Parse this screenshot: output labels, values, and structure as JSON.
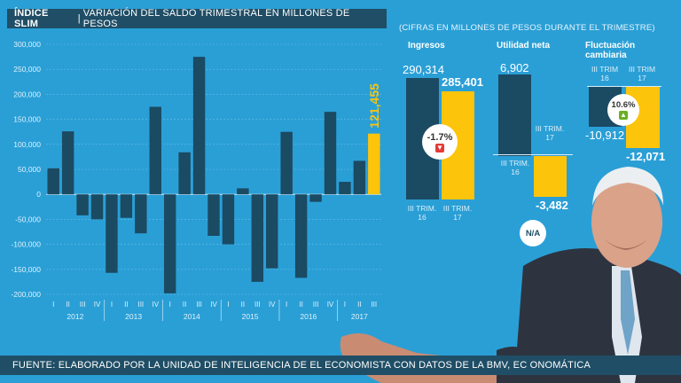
{
  "header": {
    "brand": "ÍNDICE SLIM",
    "title": "VARIACIÓN DEL SALDO TRIMESTRAL EN MILLONES DE PESOS"
  },
  "colors": {
    "background": "#2a9fd6",
    "dark_bar": "#1b4a63",
    "highlight_bar": "#fdc40c",
    "title_bar": "#1f4e66"
  },
  "chart_data": [
    {
      "type": "bar",
      "title": "VARIACIÓN DEL SALDO TRIMESTRAL EN MILLONES DE PESOS",
      "ylim": [
        -200000,
        300000
      ],
      "yticks": [
        "300,000",
        "250,000",
        "200,000",
        "150,000",
        "100,000",
        "50,000",
        "0",
        "-50,000",
        "-100,000",
        "-150,000",
        "-200,000"
      ],
      "grid": true,
      "categories": [
        "I",
        "II",
        "III",
        "IV",
        "I",
        "II",
        "III",
        "IV",
        "I",
        "II",
        "III",
        "IV",
        "I",
        "II",
        "III",
        "IV",
        "I",
        "II",
        "III",
        "IV",
        "I",
        "II",
        "III"
      ],
      "years": [
        "2012",
        "2013",
        "2014",
        "2015",
        "2016",
        "2017"
      ],
      "values": [
        52000,
        126000,
        -42000,
        -50000,
        -157000,
        -47000,
        -78000,
        175000,
        -198000,
        84000,
        275000,
        -83000,
        -100000,
        12000,
        -175000,
        -148000,
        125000,
        -167000,
        -15000,
        165000,
        25000,
        67000,
        121455
      ],
      "highlight_index": 22,
      "highlight_label": "121,455"
    },
    {
      "type": "bar",
      "note": "(CIFRAS EN MILLONES DE PESOS DURANTE EL TRIMESTRE)",
      "groups": [
        {
          "title": "Ingresos",
          "categories": [
            "III TRIM. 16",
            "III TRIM. 17"
          ],
          "values": [
            290314,
            285401
          ],
          "labels": [
            "290,314",
            "285,401"
          ],
          "change": "-1.7%",
          "direction": "down"
        },
        {
          "title": "Utilidad neta",
          "categories": [
            "III TRIM. 16",
            "III TRIM. 17"
          ],
          "values": [
            6902,
            -3482
          ],
          "labels": [
            "6,902",
            "-3,482"
          ],
          "change": "N/A"
        },
        {
          "title": "Fluctuación cambiaria",
          "categories": [
            "III TRIM. 16",
            "III TRIM. 17"
          ],
          "values": [
            -10912,
            -12071
          ],
          "labels": [
            "-10,912",
            "-12,071"
          ],
          "change": "10.6%",
          "direction": "up"
        }
      ]
    }
  ],
  "right": {
    "note": "(CIFRAS EN MILLONES DE PESOS DURANTE EL TRIMESTRE)",
    "ingresos": {
      "title": "Ingresos",
      "v16": "290,314",
      "v17": "285,401",
      "change": "-1.7%",
      "trim": "III TRIM.",
      "y16": "16",
      "y17": "17"
    },
    "utilidad": {
      "title": "Utilidad neta",
      "v16": "6,902",
      "v17": "-3,482",
      "change": "N/A",
      "trim": "III TRIM.",
      "y16": "16",
      "y17": "17"
    },
    "fluct": {
      "title1": "Fluctuación",
      "title2": "cambiaria",
      "v16": "-10,912",
      "v17": "-12,071",
      "change": "10.6%",
      "trim": "III TRIM",
      "y16": "16",
      "y17": "17"
    }
  },
  "footer": {
    "source": "FUENTE: ELABORADO POR LA UNIDAD DE INTELIGENCIA DE EL ECONOMISTA CON DATOS DE LA BMV, EC ONOMÁTICA"
  }
}
